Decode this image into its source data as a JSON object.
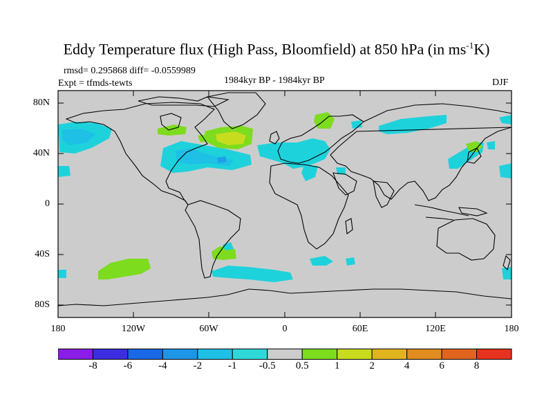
{
  "title_main": "Eddy Temperature flux (High Pass, Bloomfield) at 850 hPa (in ms",
  "title_sup": "-1",
  "title_end": "K)",
  "rmsd_text": "rmsd= 0.295868 diff= -0.0559989",
  "expt_text": "Expt = tfmds-tewts",
  "period_text": "1984kyr BP - 1984kyr BP",
  "season_text": "DJF",
  "lat_ticks": [
    "80N",
    "40N",
    "0",
    "40S",
    "80S"
  ],
  "lon_ticks": [
    "180",
    "120W",
    "60W",
    "0",
    "60E",
    "120E",
    "180"
  ],
  "colorbar": {
    "labels": [
      "-8",
      "-6",
      "-4",
      "-2",
      "-1",
      "-0.5",
      "0.5",
      "1",
      "2",
      "4",
      "6",
      "8"
    ],
    "colors": [
      "#8b1ee6",
      "#3c2ee0",
      "#1a68e6",
      "#1e96e8",
      "#1ec0e6",
      "#2ed8d8",
      "#cccccc",
      "#7ddc1e",
      "#c8dc1e",
      "#e0b41e",
      "#e08c1e",
      "#e0641e",
      "#e6321e"
    ]
  },
  "colors": {
    "land_ocean_gray": "#cccccc",
    "cyan": "#1ed2dc",
    "light_blue": "#1ec0e6",
    "blue": "#1ea0e8",
    "green": "#7ddc1e",
    "yellow_green": "#c8dc1e"
  }
}
